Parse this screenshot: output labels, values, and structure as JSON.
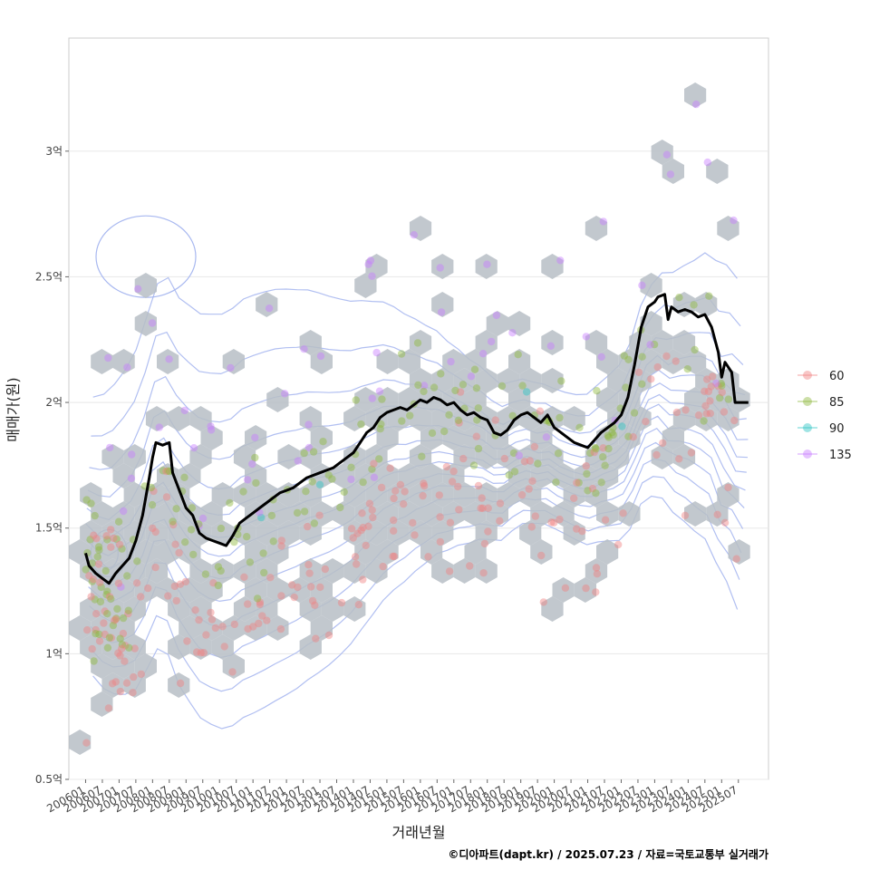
{
  "chart_data": {
    "type": "scatter",
    "xlabel": "거래년월",
    "ylabel": "매매가(원)",
    "caption": "©디아파트(dapt.kr) / 2025.07.23 / 자료=국토교통부 실거래가",
    "ylim": [
      0.5,
      3.45
    ],
    "y_ticks": [
      {
        "value": 0.5,
        "label": "0.5억"
      },
      {
        "value": 1.0,
        "label": "1억"
      },
      {
        "value": 1.5,
        "label": "1.5억"
      },
      {
        "value": 2.0,
        "label": "2억"
      },
      {
        "value": 2.5,
        "label": "2.5억"
      },
      {
        "value": 3.0,
        "label": "3억"
      }
    ],
    "xlim": [
      2005.5,
      2026.4
    ],
    "x_ticks": [
      "200601",
      "200607",
      "200701",
      "200707",
      "200801",
      "200807",
      "200901",
      "200907",
      "201001",
      "201007",
      "201101",
      "201107",
      "201201",
      "201207",
      "201301",
      "201307",
      "201401",
      "201407",
      "201501",
      "201507",
      "201601",
      "201607",
      "201701",
      "201707",
      "201801",
      "201807",
      "201901",
      "201907",
      "202001",
      "202007",
      "202101",
      "202107",
      "202201",
      "202207",
      "202301",
      "202307",
      "202401",
      "202407",
      "202501",
      "202507"
    ],
    "legend": [
      {
        "name": "60",
        "color": "#f08080"
      },
      {
        "name": "85",
        "color": "#8db83c"
      },
      {
        "name": "90",
        "color": "#2cc4c4"
      },
      {
        "name": "135",
        "color": "#c77cff"
      }
    ],
    "hex_color": "#b7bec5",
    "trend_color": "#000000",
    "contour_color": "#a8b8f0",
    "trend_line": [
      [
        2006.0,
        1.4
      ],
      [
        2006.1,
        1.35
      ],
      [
        2006.3,
        1.32
      ],
      [
        2006.5,
        1.3
      ],
      [
        2006.7,
        1.28
      ],
      [
        2006.9,
        1.32
      ],
      [
        2007.1,
        1.35
      ],
      [
        2007.3,
        1.38
      ],
      [
        2007.5,
        1.45
      ],
      [
        2007.7,
        1.55
      ],
      [
        2007.9,
        1.7
      ],
      [
        2008.0,
        1.78
      ],
      [
        2008.1,
        1.84
      ],
      [
        2008.3,
        1.83
      ],
      [
        2008.5,
        1.84
      ],
      [
        2008.6,
        1.72
      ],
      [
        2008.8,
        1.65
      ],
      [
        2009.0,
        1.58
      ],
      [
        2009.2,
        1.55
      ],
      [
        2009.4,
        1.48
      ],
      [
        2009.6,
        1.46
      ],
      [
        2009.8,
        1.45
      ],
      [
        2010.0,
        1.44
      ],
      [
        2010.2,
        1.43
      ],
      [
        2010.4,
        1.47
      ],
      [
        2010.6,
        1.52
      ],
      [
        2010.8,
        1.54
      ],
      [
        2011.0,
        1.56
      ],
      [
        2011.2,
        1.58
      ],
      [
        2011.4,
        1.6
      ],
      [
        2011.6,
        1.62
      ],
      [
        2011.8,
        1.64
      ],
      [
        2012.0,
        1.65
      ],
      [
        2012.2,
        1.66
      ],
      [
        2012.4,
        1.68
      ],
      [
        2012.6,
        1.7
      ],
      [
        2012.8,
        1.71
      ],
      [
        2013.0,
        1.72
      ],
      [
        2013.2,
        1.73
      ],
      [
        2013.4,
        1.74
      ],
      [
        2013.6,
        1.76
      ],
      [
        2013.8,
        1.78
      ],
      [
        2014.0,
        1.8
      ],
      [
        2014.2,
        1.84
      ],
      [
        2014.4,
        1.88
      ],
      [
        2014.6,
        1.9
      ],
      [
        2014.8,
        1.94
      ],
      [
        2015.0,
        1.96
      ],
      [
        2015.2,
        1.97
      ],
      [
        2015.4,
        1.98
      ],
      [
        2015.6,
        1.97
      ],
      [
        2015.8,
        1.99
      ],
      [
        2016.0,
        2.01
      ],
      [
        2016.2,
        2.0
      ],
      [
        2016.4,
        2.02
      ],
      [
        2016.6,
        2.01
      ],
      [
        2016.8,
        1.99
      ],
      [
        2017.0,
        2.0
      ],
      [
        2017.2,
        1.97
      ],
      [
        2017.4,
        1.95
      ],
      [
        2017.6,
        1.96
      ],
      [
        2017.8,
        1.94
      ],
      [
        2018.0,
        1.93
      ],
      [
        2018.2,
        1.88
      ],
      [
        2018.4,
        1.87
      ],
      [
        2018.6,
        1.89
      ],
      [
        2018.8,
        1.93
      ],
      [
        2019.0,
        1.95
      ],
      [
        2019.2,
        1.96
      ],
      [
        2019.4,
        1.94
      ],
      [
        2019.6,
        1.92
      ],
      [
        2019.8,
        1.95
      ],
      [
        2020.0,
        1.9
      ],
      [
        2020.2,
        1.88
      ],
      [
        2020.4,
        1.86
      ],
      [
        2020.6,
        1.84
      ],
      [
        2020.8,
        1.83
      ],
      [
        2021.0,
        1.82
      ],
      [
        2021.2,
        1.85
      ],
      [
        2021.4,
        1.88
      ],
      [
        2021.6,
        1.9
      ],
      [
        2021.8,
        1.92
      ],
      [
        2022.0,
        1.95
      ],
      [
        2022.2,
        2.02
      ],
      [
        2022.4,
        2.15
      ],
      [
        2022.6,
        2.3
      ],
      [
        2022.8,
        2.38
      ],
      [
        2023.0,
        2.4
      ],
      [
        2023.1,
        2.42
      ],
      [
        2023.3,
        2.43
      ],
      [
        2023.4,
        2.33
      ],
      [
        2023.5,
        2.38
      ],
      [
        2023.7,
        2.36
      ],
      [
        2023.9,
        2.37
      ],
      [
        2024.1,
        2.36
      ],
      [
        2024.3,
        2.34
      ],
      [
        2024.5,
        2.35
      ],
      [
        2024.7,
        2.3
      ],
      [
        2024.9,
        2.2
      ],
      [
        2025.0,
        2.1
      ],
      [
        2025.1,
        2.16
      ],
      [
        2025.3,
        2.12
      ],
      [
        2025.4,
        2.0
      ],
      [
        2025.6,
        2.0
      ],
      [
        2025.8,
        2.0
      ]
    ]
  }
}
